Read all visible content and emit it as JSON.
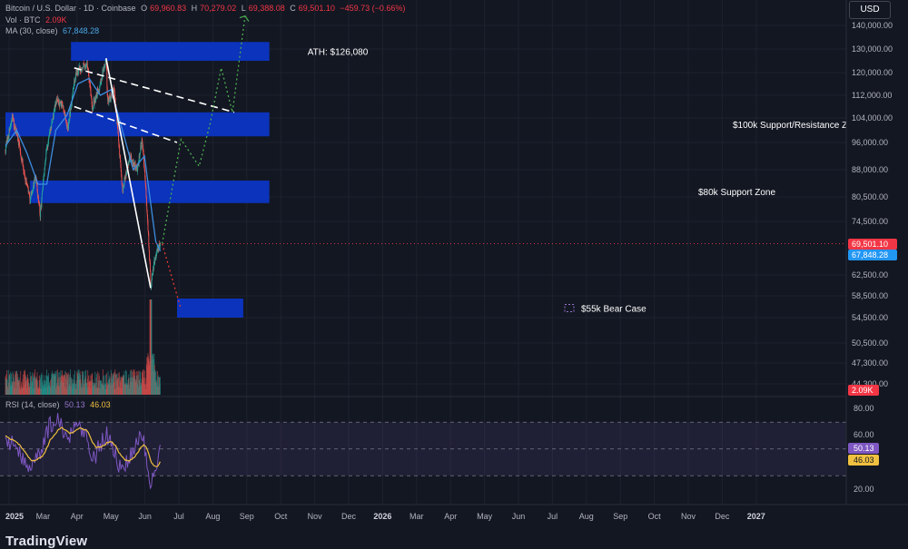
{
  "colors": {
    "background": "#131722",
    "grid": "#1e222d",
    "bull": "#26a69a",
    "bear": "#ef5350",
    "ma_line": "#3d8de0",
    "rsi_line": "#7e57c2",
    "rsi_ma": "#f0c040",
    "zone_fill": "#0b35c4",
    "projection_green": "#4caf50",
    "projection_red": "#e53935",
    "axis_text": "#b2b5be",
    "price_tag": "#f23645",
    "ma_tag": "#2196f3"
  },
  "header": {
    "symbol": "Bitcoin / U.S. Dollar · 1D · Coinbase",
    "open_label": "O",
    "open": "69,960.83",
    "high_label": "H",
    "high": "70,279.02",
    "low_label": "L",
    "low": "69,388.08",
    "close_label": "C",
    "close": "69,501.10",
    "change": "−459.73 (−0.66%)",
    "vol_label": "Vol · BTC",
    "vol_value": "2.09K",
    "ma_label": "MA (30, close)",
    "ma_value": "67,848.28",
    "rsi_label": "RSI (14, close)",
    "rsi_value": "50.13",
    "rsi_ma_value": "46.03"
  },
  "currency_button": "USD",
  "watermark": "TradingView",
  "chart_data": {
    "type": "candlestick",
    "x_labels": [
      "2025",
      "Mar",
      "Apr",
      "May",
      "Jun",
      "Jul",
      "Aug",
      "Sep",
      "Oct",
      "Nov",
      "Dec",
      "2026",
      "Mar",
      "Apr",
      "May",
      "Jun",
      "Jul",
      "Aug",
      "Sep",
      "Oct",
      "Nov",
      "Dec",
      "2027"
    ],
    "price_axis_ticks": [
      "140,000.00",
      "130,000.00",
      "120,000.00",
      "112,000.00",
      "104,000.00",
      "96,000.00",
      "88,000.00",
      "80,500.00",
      "74,500.00",
      "69,501.10",
      "67,848.28",
      "62,500.00",
      "58,500.00",
      "54,500.00",
      "50,500.00",
      "47,300.00",
      "44,300.00",
      "2.09K"
    ],
    "rsi_axis_ticks": [
      "80.00",
      "60.00",
      "50.13",
      "46.03",
      "20.00"
    ],
    "last_price": "69,501.10",
    "last_ma": "67,848.28",
    "last_volume": "2.09K",
    "annotations": {
      "ath": "ATH: $126,080",
      "zone_100k": "$100k Support/Resistance Zone",
      "zone_80k": "$80k Support Zone",
      "bear_case": "$55k Bear Case"
    },
    "price_path": [
      [
        "2025-01-01",
        94000
      ],
      [
        "2025-01-20",
        104000
      ],
      [
        "2025-02-05",
        97000
      ],
      [
        "2025-02-28",
        84000
      ],
      [
        "2025-03-10",
        80000
      ],
      [
        "2025-03-25",
        86000
      ],
      [
        "2025-04-07",
        76000
      ],
      [
        "2025-04-25",
        94000
      ],
      [
        "2025-05-22",
        110000
      ],
      [
        "2025-06-10",
        108000
      ],
      [
        "2025-06-22",
        100000
      ],
      [
        "2025-07-14",
        120000
      ],
      [
        "2025-08-14",
        124000
      ],
      [
        "2025-08-29",
        108000
      ],
      [
        "2025-09-20",
        116000
      ],
      [
        "2025-10-06",
        126080
      ],
      [
        "2025-10-10",
        110000
      ],
      [
        "2025-10-28",
        114000
      ],
      [
        "2025-11-20",
        82000
      ],
      [
        "2025-12-10",
        92000
      ],
      [
        "2025-12-31",
        88000
      ],
      [
        "2026-01-14",
        97000
      ],
      [
        "2026-02-05",
        63000
      ],
      [
        "2026-02-06",
        60000
      ],
      [
        "2026-02-20",
        67000
      ],
      [
        "2026-03-05",
        69501
      ]
    ],
    "ma_path": [
      [
        "2025-01-01",
        95000
      ],
      [
        "2025-02-01",
        100000
      ],
      [
        "2025-03-01",
        93000
      ],
      [
        "2025-04-01",
        84000
      ],
      [
        "2025-04-25",
        84000
      ],
      [
        "2025-05-20",
        100000
      ],
      [
        "2025-06-20",
        105000
      ],
      [
        "2025-07-20",
        116000
      ],
      [
        "2025-08-20",
        118000
      ],
      [
        "2025-09-20",
        112000
      ],
      [
        "2025-10-20",
        114000
      ],
      [
        "2025-11-20",
        100000
      ],
      [
        "2025-12-20",
        88000
      ],
      [
        "2026-01-20",
        92000
      ],
      [
        "2026-02-20",
        70000
      ],
      [
        "2026-03-05",
        67848
      ]
    ],
    "rsi_path": [
      [
        "2025-01-01",
        60
      ],
      [
        "2025-02-01",
        50
      ],
      [
        "2025-03-01",
        38
      ],
      [
        "2025-04-01",
        44
      ],
      [
        "2025-05-01",
        66
      ],
      [
        "2025-05-25",
        74
      ],
      [
        "2025-06-20",
        56
      ],
      [
        "2025-07-15",
        72
      ],
      [
        "2025-08-15",
        60
      ],
      [
        "2025-09-01",
        42
      ],
      [
        "2025-10-05",
        62
      ],
      [
        "2025-10-25",
        50
      ],
      [
        "2025-11-20",
        32
      ],
      [
        "2025-12-15",
        48
      ],
      [
        "2026-01-15",
        62
      ],
      [
        "2026-02-05",
        24
      ],
      [
        "2026-03-05",
        50
      ]
    ],
    "rsi_levels": [
      70,
      50,
      30
    ],
    "zones": [
      {
        "label": "ath_zone",
        "low": 125000,
        "high": 133000,
        "from": "2025-07-01",
        "to": "2026-12-31"
      },
      {
        "label": "zone_100k",
        "low": 98000,
        "high": 106000,
        "from": "2025-01-01",
        "to": "2026-12-31"
      },
      {
        "label": "zone_80k",
        "low": 79000,
        "high": 85000,
        "from": "2025-03-10",
        "to": "2026-12-31"
      },
      {
        "label": "bear_case",
        "low": 54500,
        "high": 58000,
        "from": "2026-04-20",
        "to": "2026-10-20"
      }
    ],
    "trendlines": [
      {
        "style": "dashed",
        "points": [
          [
            "2025-07-10",
            122000
          ],
          [
            "2026-09-25",
            106000
          ]
        ]
      },
      {
        "style": "dashed",
        "points": [
          [
            "2025-07-10",
            108000
          ],
          [
            "2026-04-20",
            96000
          ]
        ]
      },
      {
        "style": "solid",
        "points": [
          [
            "2025-10-06",
            126080
          ],
          [
            "2026-02-06",
            60000
          ]
        ]
      }
    ],
    "bull_projection": [
      [
        "2026-03-10",
        69500
      ],
      [
        "2026-05-01",
        97000
      ],
      [
        "2026-06-20",
        89000
      ],
      [
        "2026-07-20",
        102000
      ],
      [
        "2026-08-20",
        122000
      ],
      [
        "2026-09-20",
        106000
      ],
      [
        "2026-10-25",
        144000
      ]
    ],
    "bear_projection": [
      [
        "2026-03-10",
        69500
      ],
      [
        "2026-05-01",
        56000
      ]
    ]
  }
}
